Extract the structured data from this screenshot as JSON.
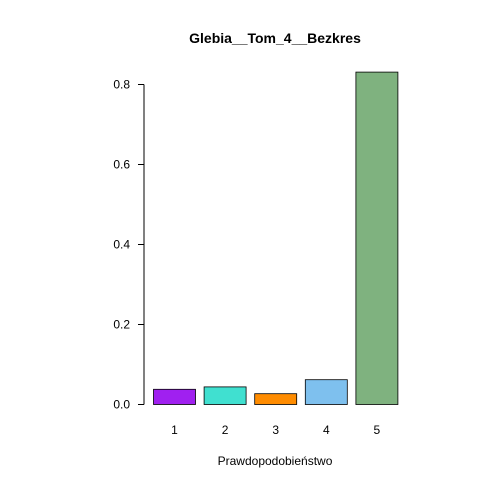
{
  "chart_data": {
    "type": "bar",
    "title": "Glebia__Tom_4__Bezkres",
    "xlabel": "Prawdopodobieństwo",
    "ylabel": "",
    "categories": [
      "1",
      "2",
      "3",
      "4",
      "5"
    ],
    "values": [
      0.038,
      0.044,
      0.027,
      0.062,
      0.831
    ],
    "colors": [
      "#a020f0",
      "#40e0d0",
      "#ff8c00",
      "#7ec0ee",
      "#7fb27f"
    ],
    "ylim": [
      0,
      0.84
    ],
    "yticks": [
      0.0,
      0.2,
      0.4,
      0.6,
      0.8
    ],
    "ytick_labels": [
      "0.0",
      "0.2",
      "0.4",
      "0.6",
      "0.8"
    ],
    "grid": false,
    "legend": "none"
  }
}
